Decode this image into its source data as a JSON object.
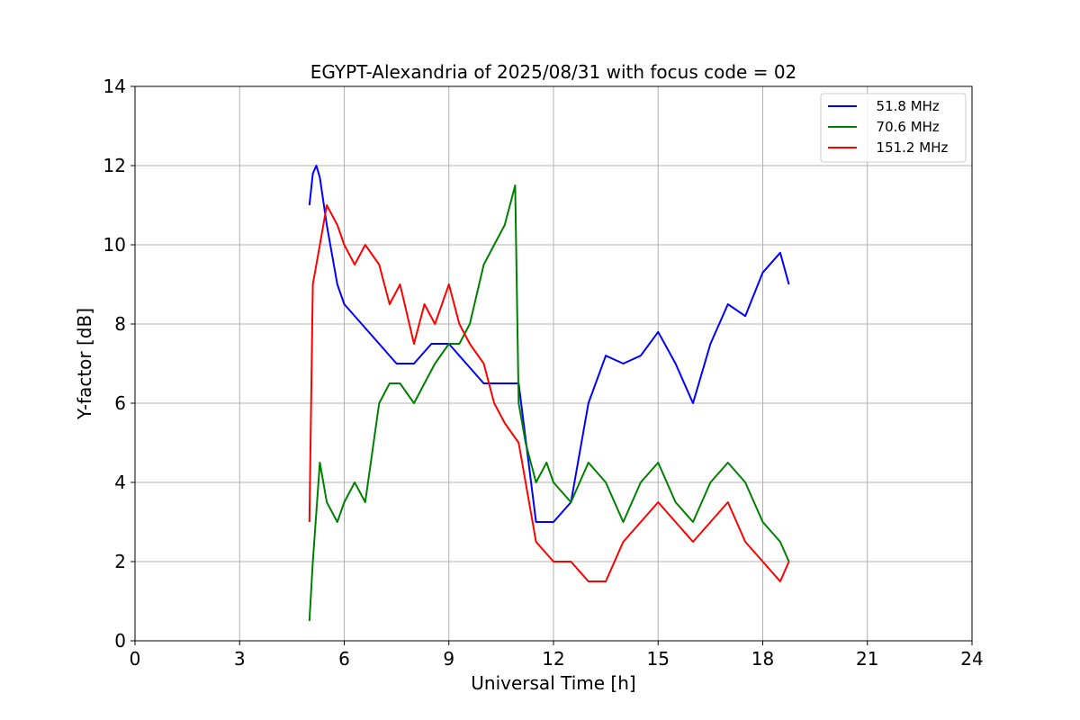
{
  "chart_data": {
    "type": "line",
    "title": "EGYPT-Alexandria of 2025/08/31 with focus code = 02",
    "xlabel": "Universal Time [h]",
    "ylabel": "Y-factor [dB]",
    "xlim": [
      0,
      24
    ],
    "ylim": [
      0,
      14
    ],
    "xticks": [
      0,
      3,
      6,
      9,
      12,
      15,
      18,
      21,
      24
    ],
    "yticks": [
      0,
      2,
      4,
      6,
      8,
      10,
      12,
      14
    ],
    "grid": true,
    "legend_position": "top-right",
    "series": [
      {
        "name": "  51.8 MHz",
        "color": "#0000ff",
        "x": [
          5.0,
          5.1,
          5.2,
          5.3,
          5.5,
          5.8,
          6.0,
          6.5,
          7.0,
          7.5,
          8.0,
          8.5,
          9.0,
          9.5,
          10.0,
          10.5,
          11.0,
          11.5,
          12.0,
          12.5,
          13.0,
          13.5,
          14.0,
          14.5,
          15.0,
          15.5,
          16.0,
          16.5,
          17.0,
          17.5,
          18.0,
          18.5,
          18.75
        ],
        "y": [
          11.0,
          11.8,
          12.0,
          11.7,
          10.5,
          9.0,
          8.5,
          8.0,
          7.5,
          7.0,
          7.0,
          7.5,
          7.5,
          7.0,
          6.5,
          6.5,
          6.5,
          3.0,
          3.0,
          3.5,
          6.0,
          7.2,
          7.0,
          7.2,
          7.8,
          7.0,
          6.0,
          7.5,
          8.5,
          8.2,
          9.3,
          9.8,
          9.0
        ]
      },
      {
        "name": "  70.6 MHz",
        "color": "#008000",
        "x": [
          5.0,
          5.1,
          5.3,
          5.5,
          5.8,
          6.0,
          6.3,
          6.6,
          7.0,
          7.3,
          7.6,
          8.0,
          8.3,
          8.6,
          9.0,
          9.3,
          9.6,
          10.0,
          10.3,
          10.6,
          10.9,
          11.0,
          11.2,
          11.5,
          11.8,
          12.0,
          12.5,
          13.0,
          13.5,
          14.0,
          14.5,
          15.0,
          15.5,
          16.0,
          16.5,
          17.0,
          17.5,
          18.0,
          18.5,
          18.75
        ],
        "y": [
          0.5,
          2.0,
          4.5,
          3.5,
          3.0,
          3.5,
          4.0,
          3.5,
          6.0,
          6.5,
          6.5,
          6.0,
          6.5,
          7.0,
          7.5,
          7.5,
          8.0,
          9.5,
          10.0,
          10.5,
          11.5,
          6.0,
          5.0,
          4.0,
          4.5,
          4.0,
          3.5,
          4.5,
          4.0,
          3.0,
          4.0,
          4.5,
          3.5,
          3.0,
          4.0,
          4.5,
          4.0,
          3.0,
          2.5,
          2.0
        ]
      },
      {
        "name": "  151.2 MHz",
        "color": "#ff0000",
        "x": [
          5.0,
          5.1,
          5.3,
          5.5,
          5.8,
          6.0,
          6.3,
          6.6,
          7.0,
          7.3,
          7.6,
          8.0,
          8.3,
          8.6,
          9.0,
          9.3,
          9.6,
          10.0,
          10.3,
          10.6,
          11.0,
          11.5,
          12.0,
          12.5,
          13.0,
          13.5,
          14.0,
          14.5,
          15.0,
          15.5,
          16.0,
          16.5,
          17.0,
          17.5,
          18.0,
          18.5,
          18.75
        ],
        "y": [
          3.0,
          9.0,
          10.0,
          11.0,
          10.5,
          10.0,
          9.5,
          10.0,
          9.5,
          8.5,
          9.0,
          7.5,
          8.5,
          8.0,
          9.0,
          8.0,
          7.5,
          7.0,
          6.0,
          5.5,
          5.0,
          2.5,
          2.0,
          2.0,
          1.5,
          1.5,
          2.5,
          3.0,
          3.5,
          3.0,
          2.5,
          3.0,
          3.5,
          2.5,
          2.0,
          1.5,
          2.0
        ]
      }
    ]
  }
}
